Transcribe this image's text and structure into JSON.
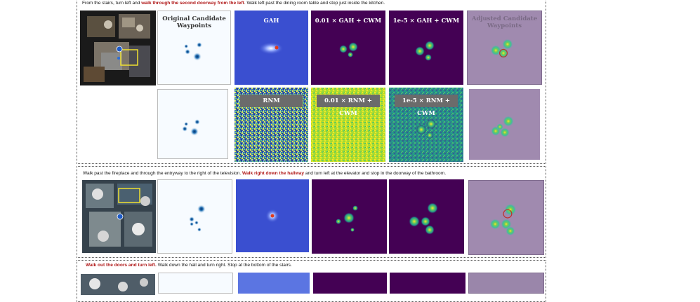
{
  "rows": [
    {
      "caption": {
        "pre": "From the stairs, turn left and ",
        "highlight": "walk through the second doorway from the left",
        "post": ". Walk left past the dining room table and stop just inside the kitchen."
      },
      "headers": {
        "original": "Original Candidate Waypoints",
        "gah": "GAH",
        "gah_cwm_small": "0.01 × GAH + CWM",
        "gah_cwm_tiny": "1e-5 × GAH + CWM",
        "adjusted": "Adjusted Candidate Waypoints"
      },
      "sub_headers": {
        "rnm": "RNM",
        "rnm_cwm_small": "0.01 × RNM + CWM",
        "rnm_cwm_tiny": "1e-5 × RNM + CWM"
      },
      "map_marker": "A"
    },
    {
      "caption": {
        "pre": "Walk past the fireplace and through the entryway to the right of the television. ",
        "highlight": "Walk right down the hallway",
        "post": " and turn left at the elevator and stop in the doorway of the bathroom."
      },
      "map_marker": "A"
    },
    {
      "caption": {
        "pre": "",
        "highlight": "Walk out the doors and turn left.",
        "post": " Walk down the hall and turn right.  Stop at the bottom of the stairs."
      }
    }
  ],
  "colors": {
    "highlight": "#b01818",
    "viridis_bg": "#440154",
    "gah_bg": "#3a4fd0",
    "adjusted_bg": "#a08aaf",
    "waypoint_blue": "#1f5aa8"
  }
}
